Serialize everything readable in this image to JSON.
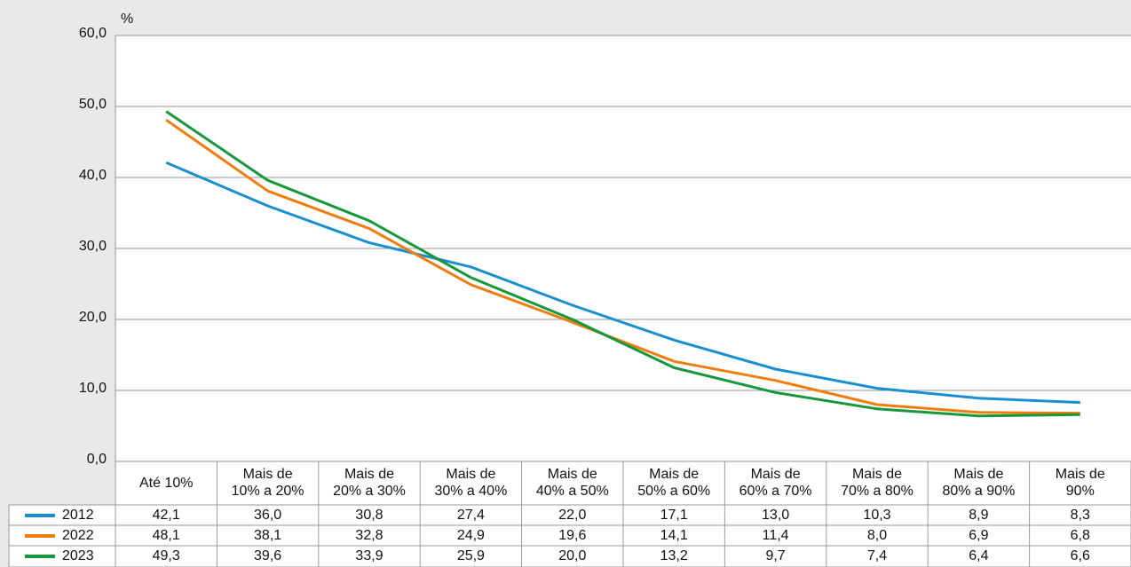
{
  "chart_data": {
    "type": "line",
    "y_label": "%",
    "categories": [
      "Até 10%",
      "Mais de\n10% a 20%",
      "Mais de\n20% a 30%",
      "Mais de\n30% a 40%",
      "Mais de\n40% a 50%",
      "Mais de\n50% a 60%",
      "Mais de\n60% a 70%",
      "Mais de\n70% a 80%",
      "Mais de\n80% a 90%",
      "Mais de\n90%"
    ],
    "series": [
      {
        "name": "2012",
        "color": "#1a8fd0",
        "values": [
          42.1,
          36.0,
          30.8,
          27.4,
          22.0,
          17.1,
          13.0,
          10.3,
          8.9,
          8.3
        ],
        "value_labels": [
          "42,1",
          "36,0",
          "30,8",
          "27,4",
          "22,0",
          "17,1",
          "13,0",
          "10,3",
          "8,9",
          "8,3"
        ]
      },
      {
        "name": "2022",
        "color": "#ee7d0e",
        "values": [
          48.1,
          38.1,
          32.8,
          24.9,
          19.6,
          14.1,
          11.4,
          8.0,
          6.9,
          6.8
        ],
        "value_labels": [
          "48,1",
          "38,1",
          "32,8",
          "24,9",
          "19,6",
          "14,1",
          "11,4",
          "8,0",
          "6,9",
          "6,8"
        ]
      },
      {
        "name": "2023",
        "color": "#17973c",
        "values": [
          49.3,
          39.6,
          33.9,
          25.9,
          20.0,
          13.2,
          9.7,
          7.4,
          6.4,
          6.6
        ],
        "value_labels": [
          "49,3",
          "39,6",
          "33,9",
          "25,9",
          "20,0",
          "13,2",
          "9,7",
          "7,4",
          "6,4",
          "6,6"
        ]
      }
    ],
    "ylim": [
      0,
      60
    ],
    "yticks": [
      {
        "value": 0,
        "label": "0,0"
      },
      {
        "value": 10,
        "label": "10,0"
      },
      {
        "value": 20,
        "label": "20,0"
      },
      {
        "value": 30,
        "label": "30,0"
      },
      {
        "value": 40,
        "label": "40,0"
      },
      {
        "value": 50,
        "label": "50,0"
      },
      {
        "value": 60,
        "label": "60,0"
      }
    ],
    "grid": true
  }
}
